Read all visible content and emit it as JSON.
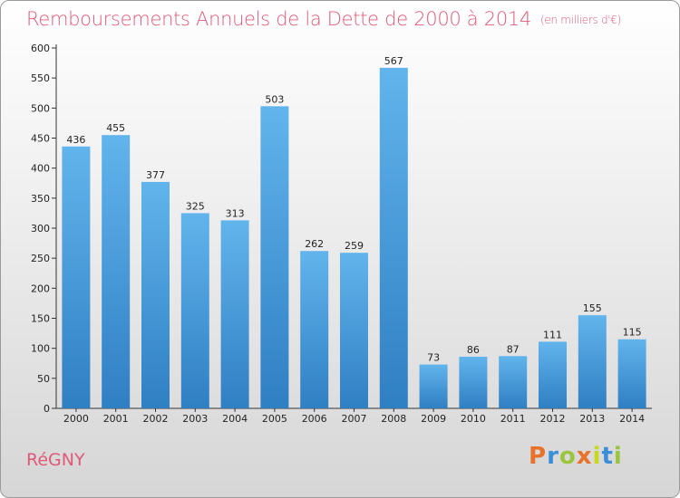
{
  "title": "Remboursements Annuels de la Dette de 2000 à 2014",
  "unit": "(en milliers d'€)",
  "commune": "RéGNY",
  "logo": "Proxiti",
  "colors": {
    "bar_light": "#62b4ec",
    "bar_dark": "#2f7fc3",
    "title": "#e05a78"
  },
  "chart_data": {
    "type": "bar",
    "categories": [
      "2000",
      "2001",
      "2002",
      "2003",
      "2004",
      "2005",
      "2006",
      "2007",
      "2008",
      "2009",
      "2010",
      "2011",
      "2012",
      "2013",
      "2014"
    ],
    "values": [
      436,
      455,
      377,
      325,
      313,
      503,
      262,
      259,
      567,
      73,
      86,
      87,
      111,
      155,
      115
    ],
    "data_labels": [
      "436",
      "455",
      "377",
      "325",
      "313",
      "503",
      "262",
      "259",
      "567",
      "73",
      "86",
      "87",
      "111",
      "155",
      "115"
    ],
    "yticks": [
      "0",
      "50",
      "100",
      "150",
      "200",
      "250",
      "300",
      "350",
      "400",
      "450",
      "500",
      "550",
      "600"
    ],
    "ylim": [
      0,
      600
    ],
    "grid": false,
    "legend": "none"
  }
}
